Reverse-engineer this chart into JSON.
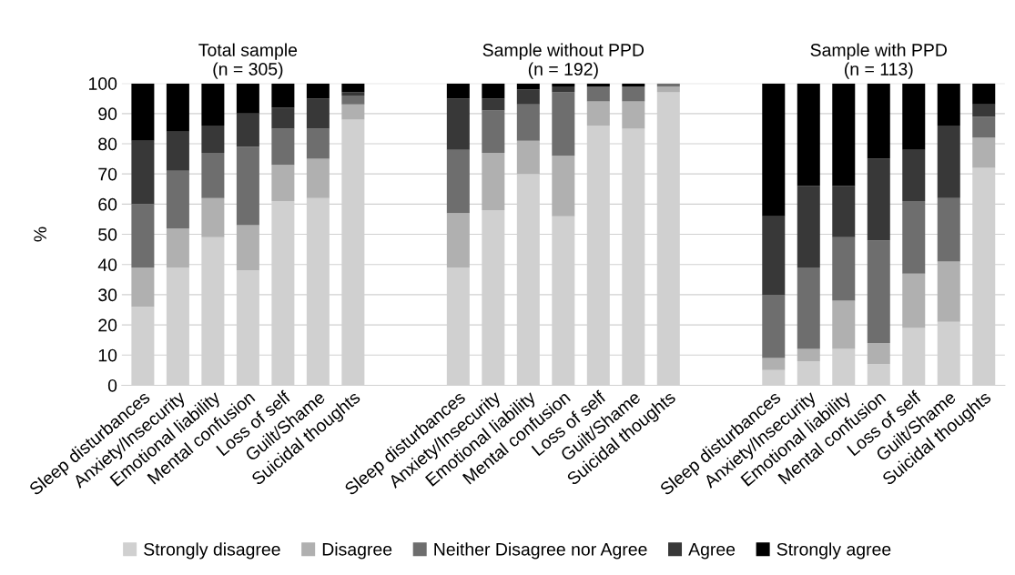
{
  "chart_data": {
    "type": "bar",
    "stacked": true,
    "ylabel": "%",
    "categories": [
      "Sleep disturbances",
      "Anxiety/Insecurity",
      "Emotional liability",
      "Mental confusion",
      "Loss of self",
      "Guilt/Shame",
      "Suicidal thoughts",
      null,
      null,
      "Sleep disturbances",
      "Anxiety/Insecurity",
      "Emotional liability",
      "Mental confusion",
      "Loss of self",
      "Guilt/Shame",
      "Suicidal thoughts",
      null,
      null,
      "Sleep disturbances",
      "Anxiety/Insecurity",
      "Emotional liability",
      "Mental confusion",
      "Loss of self",
      "Guilt/Shame",
      "Suicidal thoughts"
    ],
    "series": [
      {
        "name": "Strongly disagree",
        "color": "#d0d0d0",
        "values": [
          26,
          39,
          49,
          38,
          61,
          62,
          88,
          null,
          null,
          39,
          58,
          70,
          56,
          86,
          85,
          97,
          null,
          null,
          5,
          8,
          12,
          7,
          19,
          21,
          72
        ]
      },
      {
        "name": "Disagree",
        "color": "#b0b0b0",
        "values": [
          13,
          13,
          13,
          15,
          12,
          13,
          5,
          null,
          null,
          18,
          19,
          11,
          20,
          8,
          9,
          2,
          null,
          null,
          4,
          4,
          16,
          7,
          18,
          20,
          10
        ]
      },
      {
        "name": "Neither Disagree nor Agree",
        "color": "#6e6e6e",
        "values": [
          21,
          19,
          15,
          26,
          12,
          10,
          3,
          null,
          null,
          21,
          14,
          12,
          21,
          5,
          5,
          1,
          null,
          null,
          21,
          27,
          21,
          34,
          24,
          21,
          7
        ]
      },
      {
        "name": "Agree",
        "color": "#383838",
        "values": [
          21,
          13,
          9,
          11,
          7,
          10,
          1,
          null,
          null,
          17,
          4,
          5,
          2,
          0,
          0,
          0,
          null,
          null,
          26,
          27,
          17,
          27,
          17,
          24,
          4
        ]
      },
      {
        "name": "Strongly agree",
        "color": "#000000",
        "values": [
          19,
          16,
          14,
          10,
          8,
          5,
          3,
          null,
          null,
          5,
          5,
          2,
          1,
          1,
          1,
          0,
          null,
          null,
          44,
          34,
          34,
          25,
          22,
          14,
          7
        ]
      }
    ],
    "annotations": [
      "Total sample\n(n = 305)",
      "Sample without PPD\n(n = 192)",
      "Sample with PPD\n(n = 113)"
    ],
    "ylim": [
      0,
      100
    ],
    "yticks": [
      0,
      10,
      20,
      30,
      40,
      50,
      60,
      70,
      80,
      90,
      100
    ],
    "grid": "y",
    "legend": "bottom"
  }
}
